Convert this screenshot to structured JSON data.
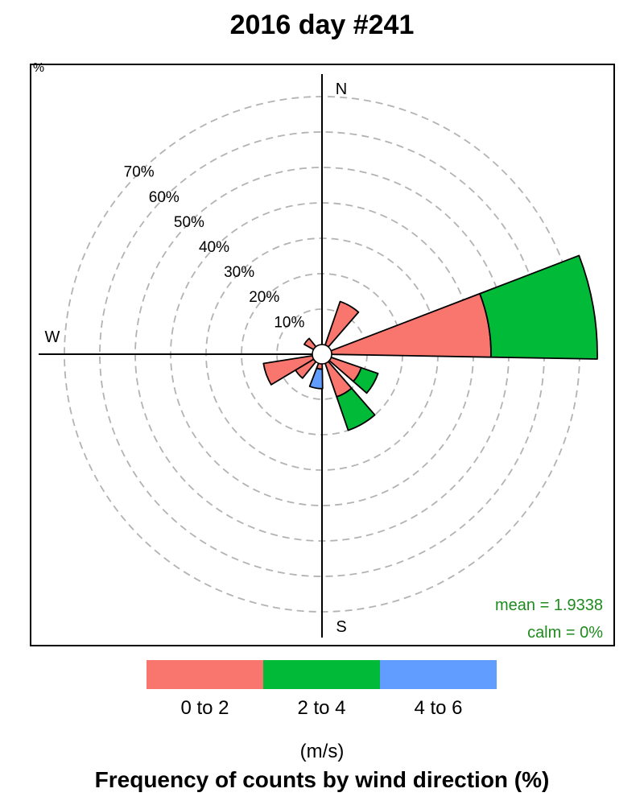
{
  "title": "2016 day #241",
  "chart_data": {
    "type": "windrose",
    "title": "2016 day #241",
    "footer": "Frequency of counts by wind direction (%)",
    "units_label": "(m/s)",
    "rings": [
      10,
      20,
      30,
      40,
      50,
      60,
      70
    ],
    "ring_labels": [
      "10%",
      "20%",
      "30%",
      "40%",
      "50%",
      "60%",
      "70%"
    ],
    "ring_prefix": "%",
    "compass": {
      "north": "N",
      "south": "S",
      "west": "W"
    },
    "speed_bins": [
      {
        "label": "0 to 2",
        "color": "#F8766D"
      },
      {
        "label": "2 to 4",
        "color": "#00BA38"
      },
      {
        "label": "4 to 6",
        "color": "#619CFF"
      }
    ],
    "sectors": [
      {
        "direction": 30,
        "cumulative": [
          13,
          13,
          13
        ]
      },
      {
        "direction": 80,
        "cumulative": [
          45,
          75,
          75
        ]
      },
      {
        "direction": 120,
        "cumulative": [
          9,
          14,
          14
        ]
      },
      {
        "direction": 150,
        "cumulative": [
          10,
          20,
          20
        ]
      },
      {
        "direction": 190,
        "cumulative": [
          1.5,
          1.5,
          7
        ]
      },
      {
        "direction": 230,
        "cumulative": [
          6,
          6,
          6
        ]
      },
      {
        "direction": 250,
        "cumulative": [
          14,
          14,
          14
        ]
      },
      {
        "direction": 310,
        "cumulative": [
          3,
          3,
          3
        ]
      }
    ],
    "stats": {
      "mean": "mean = 1.9338",
      "calm": "calm = 0%"
    },
    "stats_color": "#1f8a1f"
  }
}
